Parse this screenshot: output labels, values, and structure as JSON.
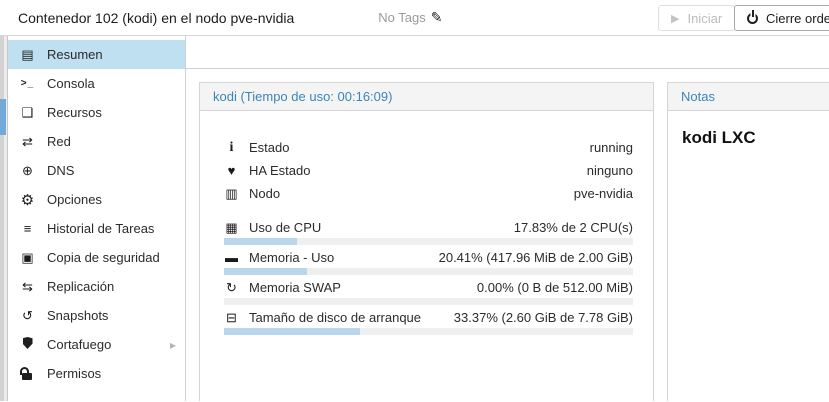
{
  "header": {
    "title": "Contenedor 102 (kodi) en el nodo pve-nvidia",
    "tags_label": "No Tags",
    "buttons": {
      "start": "Iniciar",
      "shutdown": "Cierre ordenado"
    }
  },
  "sidebar": {
    "items": [
      {
        "label": "Resumen",
        "icon": "book",
        "selected": true
      },
      {
        "label": "Consola",
        "icon": "terminal"
      },
      {
        "label": "Recursos",
        "icon": "cube"
      },
      {
        "label": "Red",
        "icon": "exchange"
      },
      {
        "label": "DNS",
        "icon": "globe"
      },
      {
        "label": "Opciones",
        "icon": "gear"
      },
      {
        "label": "Historial de Tareas",
        "icon": "list"
      },
      {
        "label": "Copia de seguridad",
        "icon": "floppy"
      },
      {
        "label": "Replicación",
        "icon": "retweet"
      },
      {
        "label": "Snapshots",
        "icon": "history"
      },
      {
        "label": "Cortafuego",
        "icon": "shield",
        "has_submenu": true
      },
      {
        "label": "Permisos",
        "icon": "unlock"
      }
    ]
  },
  "status_panel": {
    "title": "kodi (Tiempo de uso: 00:16:09)",
    "rows": [
      {
        "icon": "info",
        "label": "Estado",
        "value": "running"
      },
      {
        "icon": "heartbeat",
        "label": "HA Estado",
        "value": "ninguno"
      },
      {
        "icon": "building",
        "label": "Nodo",
        "value": "pve-nvidia"
      }
    ],
    "usage_rows": [
      {
        "icon": "cpu",
        "label": "Uso de CPU",
        "value": "17.83% de 2 CPU(s)",
        "percent": 17.83
      },
      {
        "icon": "memory",
        "label": "Memoria - Uso",
        "value": "20.41% (417.96 MiB de 2.00 GiB)",
        "percent": 20.41
      },
      {
        "icon": "swap",
        "label": "Memoria SWAP",
        "value": "0.00% (0 B de 512.00 MiB)",
        "percent": 0
      },
      {
        "icon": "disk",
        "label": "Tamaño de disco de arranque",
        "value": "33.37% (2.60 GiB de 7.78 GiB)",
        "percent": 33.37
      }
    ]
  },
  "notes_panel": {
    "title": "Notas",
    "content": "kodi LXC"
  },
  "colors": {
    "accent_blue": "#3d84b8",
    "sidebar_selection": "#bfe0f1",
    "progress_fill": "#b9d6eb",
    "tree_selection_sliver": "#74a8d8"
  }
}
